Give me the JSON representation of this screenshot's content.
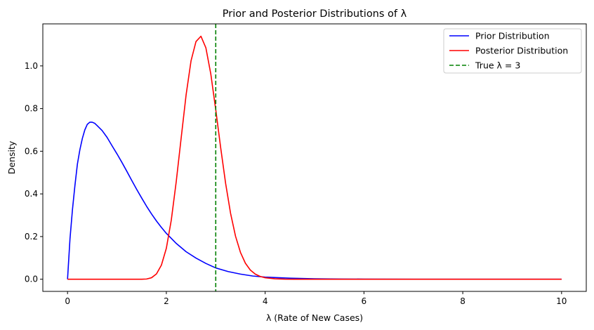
{
  "chart_data": {
    "type": "line",
    "title": "Prior and Posterior Distributions of λ",
    "xlabel": "λ (Rate of New Cases)",
    "ylabel": "Density",
    "xlim": [
      -0.5,
      10.5
    ],
    "ylim": [
      -0.057,
      1.197
    ],
    "xticks": [
      0,
      2,
      4,
      6,
      8,
      10
    ],
    "xtick_labels": [
      "0",
      "2",
      "4",
      "6",
      "8",
      "10"
    ],
    "yticks": [
      0.0,
      0.2,
      0.4,
      0.6,
      0.8,
      1.0
    ],
    "ytick_labels": [
      "0.0",
      "0.2",
      "0.4",
      "0.6",
      "0.8",
      "1.0"
    ],
    "grid": false,
    "legend_position": "top-right",
    "series": [
      {
        "name": "Prior Distribution",
        "color": "#0000ff",
        "style": "solid",
        "x": [
          0,
          0.05,
          0.1,
          0.15,
          0.2,
          0.25,
          0.3,
          0.35,
          0.4,
          0.45,
          0.5,
          0.55,
          0.6,
          0.7,
          0.8,
          0.9,
          1.0,
          1.1,
          1.2,
          1.3,
          1.4,
          1.5,
          1.6,
          1.7,
          1.8,
          1.9,
          2.0,
          2.2,
          2.4,
          2.6,
          2.8,
          3.0,
          3.25,
          3.5,
          3.75,
          4.0,
          4.5,
          5.0,
          5.5,
          6.0,
          7.0,
          8.0,
          9.0,
          10.0
        ],
        "y": [
          0,
          0.19,
          0.327,
          0.44,
          0.54,
          0.607,
          0.66,
          0.7,
          0.726,
          0.736,
          0.736,
          0.731,
          0.72,
          0.697,
          0.665,
          0.626,
          0.588,
          0.548,
          0.506,
          0.463,
          0.421,
          0.381,
          0.342,
          0.306,
          0.273,
          0.243,
          0.215,
          0.168,
          0.129,
          0.099,
          0.074,
          0.053,
          0.036,
          0.024,
          0.015,
          0.01,
          0.005,
          0.002,
          0.001,
          0.0005,
          0.0002,
          0.0001,
          0,
          0
        ]
      },
      {
        "name": "Posterior Distribution",
        "color": "#ff0000",
        "style": "solid",
        "x": [
          0,
          1.0,
          1.5,
          1.6,
          1.7,
          1.8,
          1.9,
          2.0,
          2.1,
          2.2,
          2.3,
          2.4,
          2.5,
          2.6,
          2.7,
          2.8,
          2.9,
          3.0,
          3.1,
          3.2,
          3.3,
          3.4,
          3.5,
          3.6,
          3.7,
          3.8,
          3.9,
          4.0,
          4.2,
          4.4,
          4.6,
          5.0,
          6.0,
          8.0,
          10.0
        ],
        "y": [
          0,
          0,
          0,
          0.001,
          0.007,
          0.025,
          0.066,
          0.145,
          0.277,
          0.457,
          0.662,
          0.864,
          1.024,
          1.114,
          1.139,
          1.085,
          0.962,
          0.795,
          0.616,
          0.449,
          0.309,
          0.202,
          0.126,
          0.075,
          0.043,
          0.024,
          0.013,
          0.007,
          0.002,
          0.0005,
          0.0001,
          0,
          0,
          0,
          0
        ]
      },
      {
        "name": "True λ = 3",
        "color": "#008000",
        "style": "dashed",
        "vline_x": 3
      }
    ]
  }
}
